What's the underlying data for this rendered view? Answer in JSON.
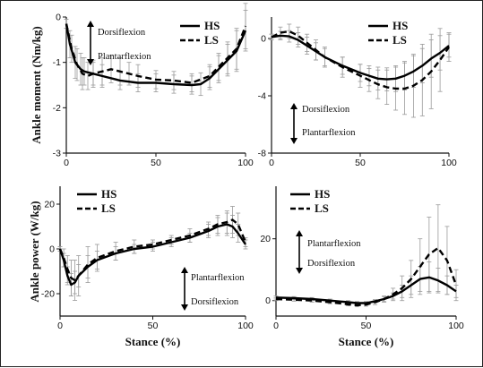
{
  "chart_data": [
    {
      "type": "line",
      "panel": "top-left",
      "ylabel": "Ankle moment (Nm/kg)",
      "xlabel": "",
      "xlim": [
        0,
        100
      ],
      "ylim": [
        -3,
        0
      ],
      "xticks": [
        0,
        50,
        100
      ],
      "yticks": [
        0,
        -1,
        -2,
        -3
      ],
      "legend": [
        "HS",
        "LS"
      ],
      "annotations": [
        "Dorsiflexion",
        "Plantarflexion"
      ],
      "series": [
        {
          "name": "HS",
          "style": "solid",
          "x": [
            0,
            2,
            5,
            8,
            10,
            15,
            20,
            30,
            40,
            50,
            60,
            70,
            75,
            80,
            85,
            90,
            95,
            100
          ],
          "y": [
            -0.15,
            -0.6,
            -1.0,
            -1.15,
            -1.2,
            -1.25,
            -1.3,
            -1.4,
            -1.45,
            -1.45,
            -1.48,
            -1.5,
            -1.48,
            -1.35,
            -1.15,
            -0.95,
            -0.75,
            -0.3
          ],
          "err": [
            0.1,
            0.3,
            0.35,
            0.35,
            0.3,
            0.25,
            0.25,
            0.2,
            0.2,
            0.2,
            0.2,
            0.2,
            0.25,
            0.25,
            0.3,
            0.35,
            0.45,
            0.45
          ]
        },
        {
          "name": "LS",
          "style": "dashed",
          "x": [
            0,
            3,
            6,
            9,
            12,
            15,
            20,
            25,
            30,
            35,
            40,
            50,
            60,
            70,
            80,
            85,
            90,
            95,
            100
          ],
          "y": [
            -0.15,
            -0.7,
            -1.05,
            -1.25,
            -1.3,
            -1.25,
            -1.2,
            -1.15,
            -1.2,
            -1.25,
            -1.3,
            -1.38,
            -1.4,
            -1.45,
            -1.3,
            -1.1,
            -0.9,
            -0.7,
            -0.2
          ],
          "err": [
            0.1,
            0.3,
            0.35,
            0.35,
            0.3,
            0.3,
            0.3,
            0.3,
            0.3,
            0.25,
            0.25,
            0.2,
            0.2,
            0.2,
            0.25,
            0.3,
            0.35,
            0.45,
            0.5
          ]
        }
      ]
    },
    {
      "type": "line",
      "panel": "top-right",
      "ylabel": "",
      "xlabel": "",
      "xlim": [
        0,
        100
      ],
      "ylim": [
        -8,
        1.5
      ],
      "xticks": [
        0,
        50,
        100
      ],
      "yticks": [
        0,
        -4,
        -8
      ],
      "legend": [
        "HS",
        "LS"
      ],
      "annotations": [
        "Dorsiflexion",
        "Plantarflexion"
      ],
      "series": [
        {
          "name": "HS",
          "style": "solid",
          "x": [
            0,
            5,
            10,
            15,
            20,
            25,
            30,
            40,
            50,
            55,
            60,
            65,
            70,
            75,
            80,
            85,
            90,
            95,
            100
          ],
          "y": [
            0.1,
            0.2,
            0.15,
            -0.1,
            -0.5,
            -0.9,
            -1.3,
            -1.9,
            -2.4,
            -2.6,
            -2.8,
            -2.85,
            -2.8,
            -2.6,
            -2.3,
            -1.9,
            -1.4,
            -1.0,
            -0.5
          ],
          "err": [
            0.2,
            0.3,
            0.4,
            0.5,
            0.6,
            0.6,
            0.6,
            0.6,
            0.6,
            0.7,
            0.8,
            0.8,
            0.9,
            1.0,
            1.1,
            1.2,
            1.3,
            1.2,
            0.8
          ]
        },
        {
          "name": "LS",
          "style": "dashed",
          "x": [
            0,
            5,
            10,
            15,
            20,
            25,
            30,
            40,
            50,
            55,
            60,
            65,
            70,
            75,
            80,
            85,
            90,
            95,
            100
          ],
          "y": [
            0.1,
            0.4,
            0.5,
            0.2,
            -0.3,
            -0.8,
            -1.3,
            -2.0,
            -2.6,
            -2.9,
            -3.2,
            -3.4,
            -3.5,
            -3.5,
            -3.3,
            -2.9,
            -2.3,
            -1.5,
            -0.6
          ],
          "err": [
            0.2,
            0.4,
            0.5,
            0.6,
            0.6,
            0.7,
            0.7,
            0.7,
            0.8,
            0.8,
            1.0,
            1.2,
            1.5,
            1.8,
            2.2,
            2.5,
            2.6,
            2.2,
            1.0
          ]
        }
      ]
    },
    {
      "type": "line",
      "panel": "bottom-left",
      "ylabel": "Ankle power (W/kg)",
      "xlabel": "Stance (%)",
      "xlim": [
        0,
        100
      ],
      "ylim": [
        -30,
        28
      ],
      "xticks": [
        0,
        50,
        100
      ],
      "yticks": [
        20,
        0,
        -20
      ],
      "legend": [
        "HS",
        "LS"
      ],
      "annotations": [
        "Plantarflexion",
        "Dorsiflexion"
      ],
      "series": [
        {
          "name": "HS",
          "style": "solid",
          "x": [
            0,
            2,
            4,
            6,
            8,
            10,
            15,
            20,
            30,
            40,
            50,
            60,
            70,
            80,
            85,
            90,
            93,
            96,
            100
          ],
          "y": [
            0,
            -5,
            -12,
            -16,
            -15,
            -12,
            -8,
            -5,
            -2,
            0,
            1,
            3,
            5,
            8,
            10,
            11,
            10,
            7,
            2
          ],
          "err": [
            1,
            3,
            4,
            5,
            5,
            5,
            5,
            4,
            3,
            2,
            2,
            2,
            2,
            3,
            4,
            5,
            5,
            4,
            2
          ]
        },
        {
          "name": "LS",
          "style": "dashed",
          "x": [
            0,
            2,
            4,
            6,
            8,
            10,
            15,
            20,
            30,
            40,
            50,
            60,
            70,
            80,
            85,
            90,
            93,
            96,
            100
          ],
          "y": [
            0,
            -4,
            -9,
            -13,
            -14,
            -12,
            -7,
            -4,
            -1,
            1,
            2,
            4,
            6,
            9,
            11,
            12,
            13,
            11,
            3
          ],
          "err": [
            1,
            4,
            6,
            8,
            9,
            9,
            8,
            6,
            4,
            3,
            2,
            2,
            3,
            3,
            4,
            5,
            6,
            5,
            2
          ]
        }
      ]
    },
    {
      "type": "line",
      "panel": "bottom-right",
      "ylabel": "",
      "xlabel": "Stance (%)",
      "xlim": [
        0,
        100
      ],
      "ylim": [
        -5,
        37
      ],
      "xticks": [
        0,
        50,
        100
      ],
      "yticks": [
        20,
        0
      ],
      "legend": [
        "HS",
        "LS"
      ],
      "annotations": [
        "Plantarflexion",
        "Dorsiflexion"
      ],
      "series": [
        {
          "name": "HS",
          "style": "solid",
          "x": [
            0,
            10,
            20,
            30,
            40,
            45,
            50,
            55,
            60,
            65,
            70,
            75,
            80,
            85,
            90,
            95,
            100
          ],
          "y": [
            1,
            0.8,
            0.5,
            0,
            -0.5,
            -0.8,
            -0.8,
            -0.2,
            0.5,
            1.5,
            3,
            5,
            7,
            7.5,
            6.5,
            5,
            3
          ],
          "err": [
            0.5,
            0.5,
            0.5,
            0.5,
            0.5,
            0.5,
            0.5,
            0.5,
            0.8,
            1,
            2,
            3,
            4,
            5,
            4,
            3,
            2
          ]
        },
        {
          "name": "LS",
          "style": "dashed",
          "x": [
            0,
            10,
            20,
            30,
            40,
            45,
            50,
            55,
            60,
            65,
            70,
            75,
            80,
            85,
            90,
            95,
            100
          ],
          "y": [
            0.5,
            0.3,
            0,
            -0.5,
            -1.2,
            -1.5,
            -1.3,
            -0.5,
            0.5,
            2,
            4,
            7,
            11,
            15,
            17,
            13,
            5
          ],
          "err": [
            0.5,
            0.5,
            0.5,
            0.5,
            0.5,
            0.5,
            0.5,
            0.8,
            1,
            2,
            4,
            6,
            9,
            12,
            14,
            11,
            5
          ]
        }
      ]
    }
  ]
}
